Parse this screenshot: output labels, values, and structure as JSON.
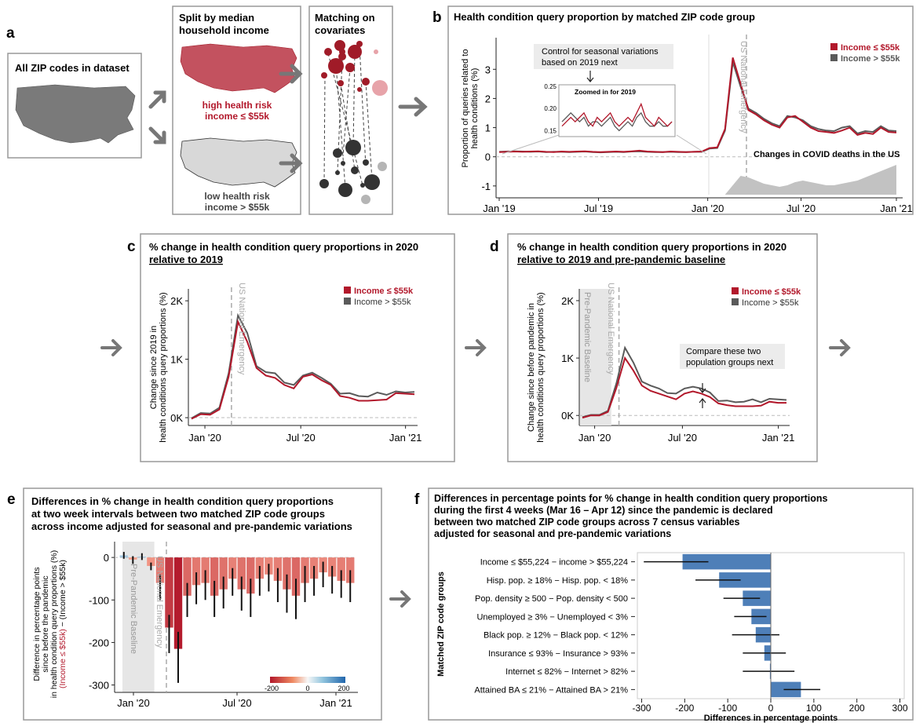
{
  "colors": {
    "low_income": "#b2182b",
    "high_income": "#5a5a5a",
    "bar_blue": "#4e7fb8",
    "grey_box": "#888888",
    "baseline_shade": "#e6e6e6",
    "dash": "#aaaaaa"
  },
  "panel_a": {
    "letter": "a",
    "all_zip_label": "All ZIP codes in dataset",
    "split_title_1": "Split by median",
    "split_title_2": "household income",
    "high_risk_1": "high health risk",
    "high_risk_2": "income ≤ $55k",
    "low_risk_1": "low health risk",
    "low_risk_2": "income > $55k",
    "matching_1": "Matching on",
    "matching_2": "covariates"
  },
  "panel_b": {
    "letter": "b",
    "title": "Health condition query proportion by matched ZIP code group",
    "ylabel_1": "Proportion of queries related to",
    "ylabel_2": "health conditions (%)",
    "callout_1": "Control for seasonal variations",
    "callout_2": "based on 2019 next",
    "zoom_label": "Zoomed in for 2019",
    "emergency_label": "US National Emergency",
    "deaths_label": "Changes in COVID deaths in the US",
    "legend": [
      "Income ≤ $55k",
      "Income > $55k"
    ]
  },
  "panel_c": {
    "letter": "c",
    "title_1": "% change in health condition query proportions in 2020",
    "title_2": "relative to 2019",
    "ylabel_1": "Change since 2019 in",
    "ylabel_2": "health conditions query proportions (%)",
    "emergency_label": "US National Emergency",
    "legend": [
      "Income ≤ $55k",
      "Income > $55k"
    ]
  },
  "panel_d": {
    "letter": "d",
    "title_1": "% change in health condition query proportions in 2020",
    "title_2": "relative to 2019 and pre-pandemic baseline",
    "ylabel_1": "Change since before pandemic in",
    "ylabel_2": "health conditions query proportions (%)",
    "baseline_label": "Pre-Pandemic Baseline",
    "emergency_label": "US National Emergency",
    "callout_1": "Compare these two",
    "callout_2": "population groups next",
    "legend": [
      "Income ≤ $55k",
      "Income > $55k"
    ]
  },
  "panel_e": {
    "letter": "e",
    "title_1": "Differences in % change in health condition query proportions",
    "title_2": "at two week intervals between two matched ZIP code groups",
    "title_3": "across income adjusted for seasonal and pre-pandemic variations",
    "ylabel_1": "Difference in percentage points",
    "ylabel_2": "since before the pandemic",
    "ylabel_3": "in health condition query proportions (%)",
    "ylabel_4a": "(Income ≤ $55k)",
    "ylabel_4b": " − (Income > $55k)",
    "baseline_label": "Pre-Pandemic Baseline",
    "emergency_label": "US National Emergency",
    "colorbar_ticks": [
      "-200",
      "0",
      "200"
    ]
  },
  "panel_f": {
    "letter": "f",
    "title_1": "Differences in percentage points for % change in health condition query proportions",
    "title_2": "during the first 4 weeks (Mar 16 – Apr 12) since the pandemic is declared",
    "title_3": "between two matched ZIP code groups across 7 census variables",
    "title_4": "adjusted for seasonal and pre-pandemic variations",
    "ylabel": "Matched ZIP code groups"
  },
  "chart_data": [
    {
      "id": "b",
      "type": "line",
      "x_ticks": [
        "Jan '19",
        "Jul '19",
        "Jan '20",
        "Jul '20",
        "Jan '21"
      ],
      "y_ticks": [
        "-1",
        "0",
        "1",
        "2",
        "3"
      ],
      "ylim": [
        -1.3,
        3.6
      ],
      "series": [
        {
          "name": "Income ≤ $55k",
          "values": [
            0.16,
            0.17,
            0.18,
            0.17,
            0.18,
            0.19,
            0.17,
            0.16,
            0.18,
            0.17,
            0.18,
            0.19,
            0.17,
            0.16,
            0.17,
            0.18,
            0.17,
            0.19,
            0.21,
            0.18,
            0.17,
            0.16,
            0.18,
            0.17,
            0.16,
            0.17,
            0.18,
            0.3,
            0.32,
            0.95,
            3.4,
            2.5,
            1.6,
            1.45,
            1.25,
            1.1,
            1.0,
            1.35,
            1.4,
            1.2,
            1.0,
            0.88,
            0.85,
            0.82,
            0.9,
            1.0,
            0.75,
            0.82,
            0.78,
            1.0,
            0.85,
            0.83
          ]
        },
        {
          "name": "Income > $55k",
          "values": [
            0.17,
            0.18,
            0.19,
            0.18,
            0.17,
            0.18,
            0.16,
            0.17,
            0.17,
            0.16,
            0.17,
            0.18,
            0.16,
            0.15,
            0.16,
            0.17,
            0.16,
            0.18,
            0.19,
            0.17,
            0.16,
            0.16,
            0.17,
            0.16,
            0.16,
            0.17,
            0.17,
            0.28,
            0.3,
            0.9,
            3.25,
            2.4,
            1.65,
            1.5,
            1.3,
            1.15,
            1.05,
            1.4,
            1.35,
            1.25,
            1.05,
            0.95,
            0.9,
            0.88,
            1.0,
            1.05,
            0.8,
            0.88,
            0.85,
            1.05,
            0.9,
            0.88
          ]
        }
      ],
      "deaths_series": [
        0,
        0,
        0,
        0,
        0,
        0,
        0,
        0,
        0,
        0,
        0,
        0,
        0,
        0,
        0,
        0,
        0,
        0,
        0,
        0,
        0,
        0,
        0,
        0,
        0,
        0,
        0,
        0,
        0,
        0,
        0.3,
        0.6,
        0.55,
        0.45,
        0.35,
        0.3,
        0.25,
        0.3,
        0.4,
        0.45,
        0.4,
        0.35,
        0.3,
        0.3,
        0.35,
        0.4,
        0.45,
        0.55,
        0.65,
        0.75,
        0.85,
        0.95
      ]
    },
    {
      "id": "c",
      "type": "line",
      "x_ticks": [
        "Jan '20",
        "Jul '20",
        "Jan '21"
      ],
      "y_ticks": [
        "0K",
        "1K",
        "2K"
      ],
      "ylim": [
        -80,
        2150
      ],
      "series": [
        {
          "name": "Income ≤ $55k",
          "values": [
            -20,
            60,
            50,
            140,
            700,
            1640,
            1300,
            850,
            720,
            680,
            560,
            500,
            700,
            740,
            640,
            560,
            370,
            340,
            290,
            290,
            300,
            310,
            420,
            410,
            400
          ]
        },
        {
          "name": "Income > $55k",
          "values": [
            -10,
            80,
            70,
            170,
            760,
            1750,
            1450,
            880,
            780,
            760,
            600,
            560,
            720,
            770,
            680,
            580,
            410,
            420,
            370,
            360,
            430,
            390,
            450,
            430,
            440
          ]
        }
      ]
    },
    {
      "id": "d",
      "type": "line",
      "x_ticks": [
        "Jan '20",
        "Jul '20",
        "Jan '21"
      ],
      "y_ticks": [
        "0K",
        "1K",
        "2K"
      ],
      "ylim": [
        -120,
        2150
      ],
      "series": [
        {
          "name": "Income ≤ $55k",
          "values": [
            -40,
            0,
            0,
            60,
            480,
            1000,
            780,
            520,
            430,
            380,
            330,
            280,
            380,
            420,
            380,
            320,
            210,
            180,
            160,
            160,
            160,
            170,
            240,
            220,
            220
          ]
        },
        {
          "name": "Income > $55k",
          "values": [
            -30,
            10,
            10,
            80,
            560,
            1180,
            920,
            590,
            520,
            470,
            390,
            380,
            470,
            500,
            470,
            400,
            250,
            260,
            230,
            240,
            280,
            230,
            290,
            280,
            270
          ]
        }
      ]
    },
    {
      "id": "e",
      "type": "bar",
      "x_ticks": [
        "Jan '20",
        "Jul '20",
        "Jan '21"
      ],
      "y_ticks": [
        "0",
        "-100",
        "-200",
        "-300"
      ],
      "ylim": [
        -310,
        15
      ],
      "values": [
        5,
        -5,
        2,
        -20,
        -60,
        -165,
        -215,
        -90,
        -65,
        -60,
        -90,
        -75,
        -50,
        -75,
        -85,
        -50,
        -40,
        -55,
        -75,
        -90,
        -60,
        -50,
        -35,
        -45,
        -55,
        -60
      ],
      "err_low": [
        8,
        10,
        8,
        10,
        40,
        60,
        80,
        50,
        45,
        40,
        50,
        45,
        40,
        50,
        55,
        40,
        40,
        50,
        55,
        55,
        45,
        40,
        35,
        40,
        40,
        45
      ],
      "err_high": [
        8,
        8,
        8,
        8,
        20,
        30,
        40,
        30,
        30,
        30,
        35,
        30,
        25,
        30,
        35,
        30,
        25,
        30,
        35,
        40,
        40,
        30,
        25,
        25,
        25,
        30
      ],
      "baseline_count": 3
    },
    {
      "id": "f",
      "type": "bar",
      "categories": [
        "Income ≤ $55,224 − income > $55,224",
        "Hisp. pop. ≥ 18% − Hisp. pop. < 18%",
        "Pop. density ≥ 500 − Pop. density < 500",
        "Unemployed ≥ 3% − Unemployed < 3%",
        "Black pop. ≥ 12% − Black pop. < 12%",
        "Insurance ≤ 93% − Insurance > 93%",
        "Internet ≤ 82% − Internet > 82%",
        "Attained BA ≤ 21% − Attained BA > 21%"
      ],
      "values": [
        -205,
        -120,
        -65,
        -45,
        -35,
        -15,
        -2,
        70
      ],
      "ci_low": [
        -295,
        -175,
        -110,
        -85,
        -90,
        -65,
        -65,
        30
      ],
      "ci_high": [
        -145,
        -70,
        -25,
        -10,
        20,
        35,
        55,
        115
      ],
      "x_ticks": [
        "-300",
        "-200",
        "-100",
        "0",
        "100",
        "200",
        "300"
      ],
      "xlabel": "Differences in percentage points",
      "xlim": [
        -310,
        310
      ]
    }
  ]
}
